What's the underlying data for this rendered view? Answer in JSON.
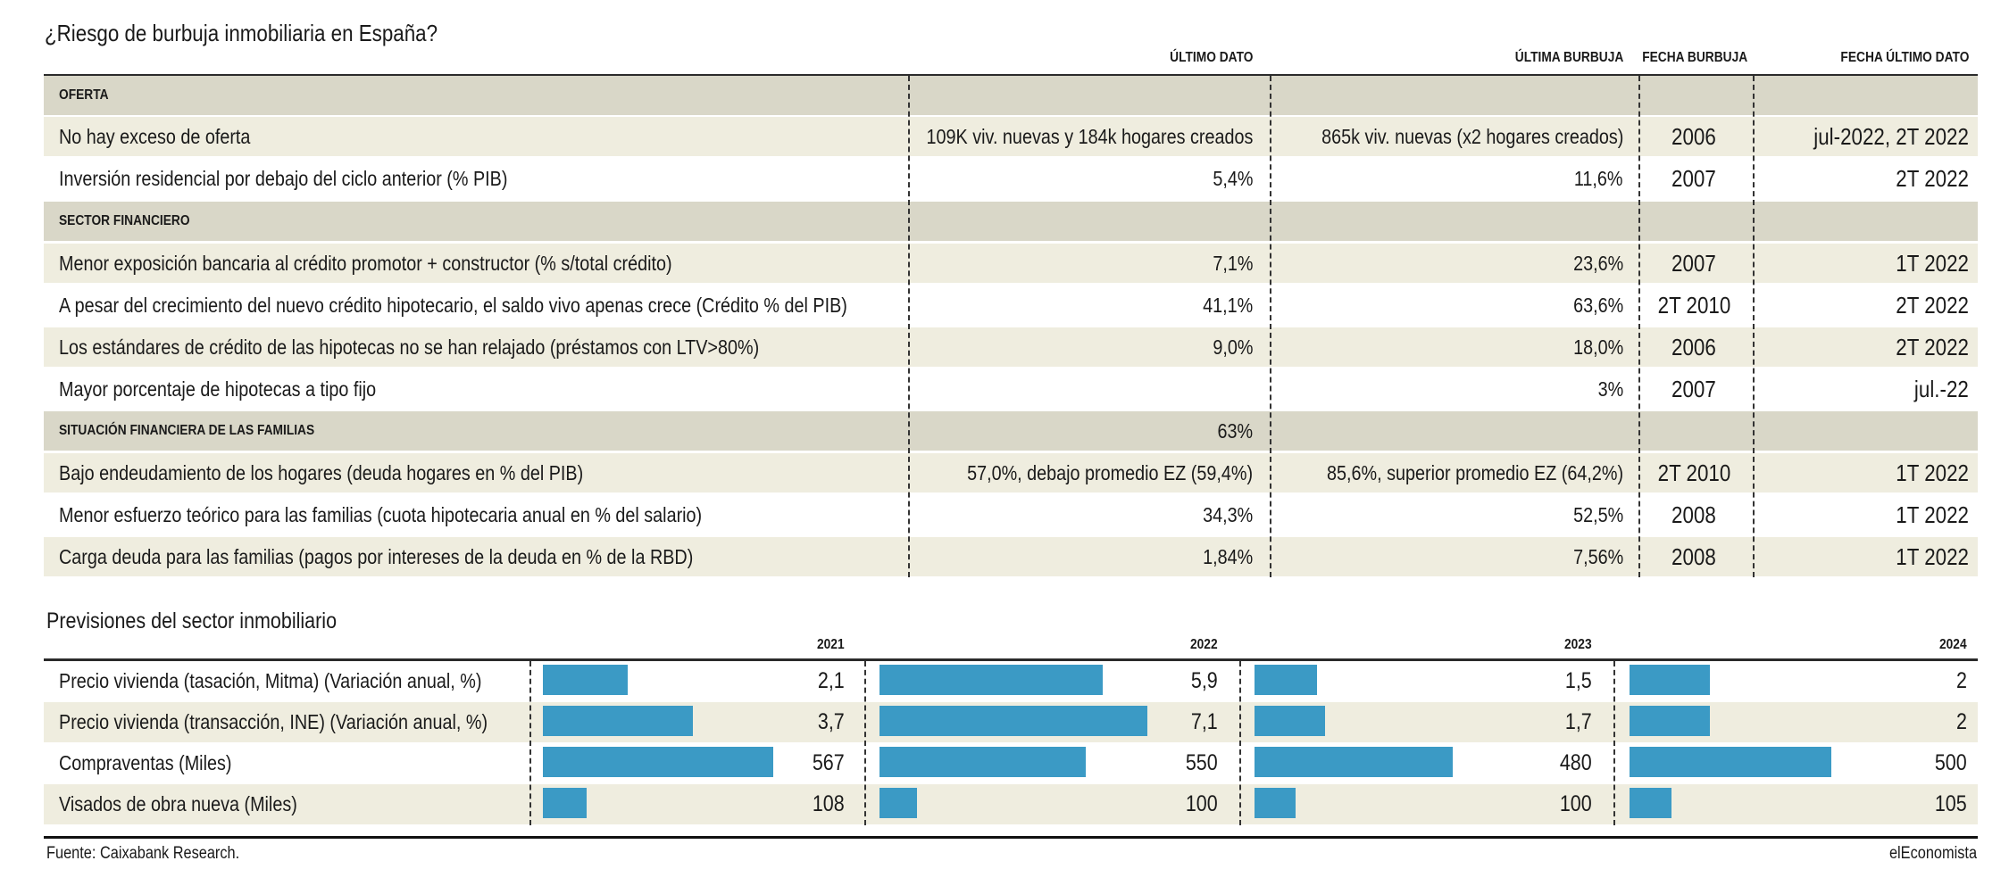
{
  "title": "¿Riesgo de burbuja inmobiliaria en España?",
  "risk_table": {
    "columns": [
      "",
      "ÚLTIMO DATO",
      "ÚLTIMA BURBUJA",
      "FECHA BURBUJA",
      "FECHA ÚLTIMO DATO"
    ],
    "rows": [
      {
        "type": "section",
        "label": "OFERTA",
        "ultimo": "",
        "burbuja": "",
        "fecha_burbuja": "",
        "fecha_ultimo": ""
      },
      {
        "type": "data",
        "label": "No hay exceso de oferta",
        "ultimo": "109K viv. nuevas y 184k hogares creados",
        "burbuja": "865k viv. nuevas (x2 hogares creados)",
        "fecha_burbuja": "2006",
        "fecha_ultimo": "jul-2022, 2T 2022"
      },
      {
        "type": "data",
        "label": "Inversión residencial por debajo del ciclo anterior (% PIB)",
        "ultimo": "5,4%",
        "burbuja": "11,6%",
        "fecha_burbuja": "2007",
        "fecha_ultimo": "2T 2022"
      },
      {
        "type": "section",
        "label": "SECTOR FINANCIERO",
        "ultimo": "",
        "burbuja": "",
        "fecha_burbuja": "",
        "fecha_ultimo": ""
      },
      {
        "type": "data",
        "label": "Menor exposición bancaria al crédito promotor + constructor (% s/total crédito)",
        "ultimo": "7,1%",
        "burbuja": "23,6%",
        "fecha_burbuja": "2007",
        "fecha_ultimo": "1T 2022"
      },
      {
        "type": "data",
        "label": "A pesar del crecimiento del nuevo crédito hipotecario, el saldo vivo apenas crece (Crédito % del PIB)",
        "ultimo": "41,1%",
        "burbuja": "63,6%",
        "fecha_burbuja": "2T 2010",
        "fecha_ultimo": "2T 2022"
      },
      {
        "type": "data",
        "label": "Los estándares de crédito de las hipotecas no se han relajado (préstamos con LTV>80%)",
        "ultimo": "9,0%",
        "burbuja": "18,0%",
        "fecha_burbuja": "2006",
        "fecha_ultimo": "2T 2022"
      },
      {
        "type": "data",
        "label": "Mayor porcentaje de hipotecas a tipo fijo",
        "ultimo": "",
        "burbuja": "3%",
        "fecha_burbuja": "2007",
        "fecha_ultimo": "jul.-22"
      },
      {
        "type": "section",
        "label": "SITUACIÓN FINANCIERA DE LAS FAMILIAS",
        "ultimo": "63%",
        "burbuja": "",
        "fecha_burbuja": "",
        "fecha_ultimo": ""
      },
      {
        "type": "data",
        "label": "Bajo endeudamiento de los hogares (deuda hogares en % del PIB)",
        "ultimo": "57,0%, debajo promedio EZ (59,4%)",
        "burbuja": "85,6%, superior promedio EZ (64,2%)",
        "fecha_burbuja": "2T 2010",
        "fecha_ultimo": "1T 2022"
      },
      {
        "type": "data",
        "label": "Menor esfuerzo teórico para las familias (cuota hipotecaria anual en % del salario)",
        "ultimo": "34,3%",
        "burbuja": "52,5%",
        "fecha_burbuja": "2008",
        "fecha_ultimo": "1T 2022"
      },
      {
        "type": "data",
        "label": "Carga deuda para las familias (pagos por intereses de la deuda en % de la RBD)",
        "ultimo": "1,84%",
        "burbuja": "7,56%",
        "fecha_burbuja": "2008",
        "fecha_ultimo": "1T 2022"
      }
    ]
  },
  "forecast": {
    "title": "Previsiones del sector inmobiliario",
    "bar_color": "#3b9ac5"
  },
  "chart_data": {
    "type": "bar",
    "title": "Previsiones del sector inmobiliario",
    "categories": [
      "Precio vivienda (tasación, Mitma) (Variación anual, %)",
      "Precio vivienda (transacción, INE) (Variación anual, %)",
      "Compraventas (Miles)",
      "Visados de obra nueva  (Miles)"
    ],
    "series": [
      {
        "name": "2021",
        "values": [
          2.1,
          3.7,
          567,
          108
        ],
        "labels": [
          "2,1",
          "3,7",
          "567",
          "108"
        ]
      },
      {
        "name": "2022",
        "values": [
          5.9,
          7.1,
          550,
          100
        ],
        "labels": [
          "5,9",
          "7,1",
          "550",
          "100"
        ]
      },
      {
        "name": "2023",
        "values": [
          1.5,
          1.7,
          480,
          100
        ],
        "labels": [
          "1,5",
          "1,7",
          "480",
          "100"
        ]
      },
      {
        "name": "2024",
        "values": [
          2,
          2,
          500,
          105
        ],
        "labels": [
          "2",
          "2",
          "500",
          "105"
        ]
      }
    ],
    "xlabel": "",
    "ylabel": "",
    "grid": false,
    "legend": "none"
  },
  "footer": {
    "source": "Fuente: Caixabank Research.",
    "brand": "elEconomista"
  }
}
